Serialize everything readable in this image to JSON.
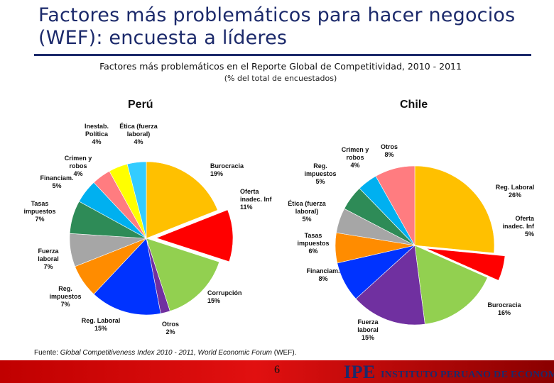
{
  "header": {
    "title": "Factores más problemáticos para hacer negocios (WEF): encuesta a líderes",
    "subtitle": "Factores más problemáticos en el Reporte Global de Competitividad, 2010 - 2011",
    "note": "(% del total de encuestados)"
  },
  "chart_data": [
    {
      "type": "pie",
      "title": "Perú",
      "unit": "%",
      "slices": [
        {
          "label": "Burocracia",
          "value": 19,
          "color": "#ffc000"
        },
        {
          "label": "Oferta inadec. Inf",
          "value": 11,
          "color": "#ff0000"
        },
        {
          "label": "Corrupción",
          "value": 15,
          "color": "#92d050"
        },
        {
          "label": "Otros",
          "value": 2,
          "color": "#7030a0"
        },
        {
          "label": "Reg. Laboral",
          "value": 15,
          "color": "#0033ff"
        },
        {
          "label": "Reg. impuestos",
          "value": 7,
          "color": "#ff8c00"
        },
        {
          "label": "Fuerza laboral",
          "value": 7,
          "color": "#a6a6a6"
        },
        {
          "label": "Tasas impuestos",
          "value": 7,
          "color": "#2e8b57"
        },
        {
          "label": "Financiam.",
          "value": 5,
          "color": "#00b0f0"
        },
        {
          "label": "Crimen y robos",
          "value": 4,
          "color": "#ff7c80"
        },
        {
          "label": "Inestab. Política",
          "value": 4,
          "color": "#ffff00"
        },
        {
          "label": "Ética (fuerza laboral)",
          "value": 4,
          "color": "#33ccff"
        }
      ]
    },
    {
      "type": "pie",
      "title": "Chile",
      "unit": "%",
      "slices": [
        {
          "label": "Reg. Laboral",
          "value": 26,
          "color": "#ffc000"
        },
        {
          "label": "Oferta inadec. Inf",
          "value": 5,
          "color": "#ff0000"
        },
        {
          "label": "Burocracia",
          "value": 16,
          "color": "#92d050"
        },
        {
          "label": "Fuerza laboral",
          "value": 15,
          "color": "#7030a0"
        },
        {
          "label": "Financiam.",
          "value": 8,
          "color": "#0033ff"
        },
        {
          "label": "Tasas impuestos",
          "value": 6,
          "color": "#ff8c00"
        },
        {
          "label": "Ética (fuerza laboral)",
          "value": 5,
          "color": "#a6a6a6"
        },
        {
          "label": "Reg. impuestos",
          "value": 5,
          "color": "#2e8b57"
        },
        {
          "label": "Crimen y robos",
          "value": 4,
          "color": "#00b0f0"
        },
        {
          "label": "Otros",
          "value": 8,
          "color": "#ff7c80"
        }
      ]
    }
  ],
  "footer": {
    "source_prefix": "Fuente: ",
    "source_italic": "Global Competitiveness Index 2010 - 2011, World Economic Forum",
    "source_suffix": " (WEF).",
    "page_number": "6",
    "logo_mark": "IPE",
    "org_name": "INSTITUTO PERUANO DE ECONOMÍA"
  }
}
